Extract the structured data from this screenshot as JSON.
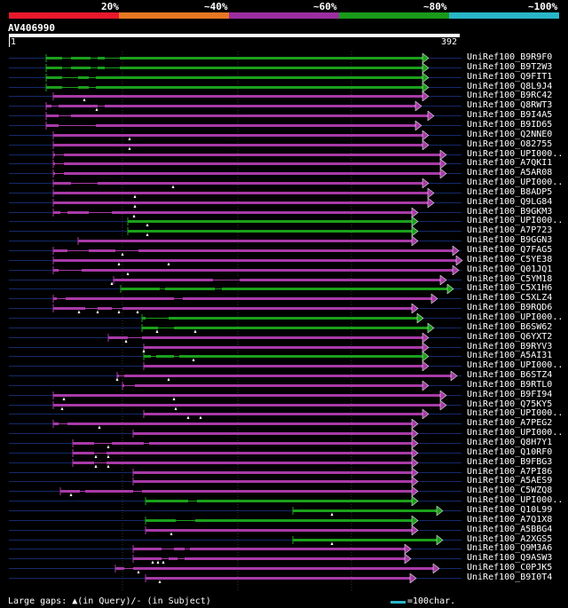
{
  "scale": {
    "segments": [
      {
        "label": "20%",
        "color": "#e8192c"
      },
      {
        "label": "~40%",
        "color": "#e87722"
      },
      {
        "label": "~60%",
        "color": "#9b2fa0"
      },
      {
        "label": "~80%",
        "color": "#1a9a1a"
      },
      {
        "label": "~100%",
        "color": "#29b6c8"
      }
    ]
  },
  "query": {
    "title": "AV406990",
    "start": "1",
    "end": "392"
  },
  "colors": {
    "purple": "#a83aa8",
    "green": "#1ba01b",
    "gap": "#142a6a",
    "dot": "#ffffff"
  },
  "hits": [
    {
      "label": "UniRef100_B9R9F0",
      "color": "green",
      "start": 52,
      "end": 476,
      "gaps": [
        [
          70,
          80
        ],
        [
          102,
          110
        ],
        [
          118,
          135
        ]
      ],
      "marks": []
    },
    {
      "label": "UniRef100_B9T2W3",
      "color": "green",
      "start": 52,
      "end": 476,
      "gaps": [
        [
          70,
          80
        ],
        [
          102,
          110
        ],
        [
          118,
          135
        ]
      ],
      "marks": []
    },
    {
      "label": "UniRef100_Q9FIT1",
      "color": "green",
      "start": 52,
      "end": 476,
      "gaps": [
        [
          70,
          88
        ],
        [
          100,
          108
        ]
      ],
      "marks": []
    },
    {
      "label": "UniRef100_Q8L9J4",
      "color": "green",
      "start": 52,
      "end": 476,
      "gaps": [
        [
          70,
          88
        ],
        [
          100,
          108
        ]
      ],
      "marks": []
    },
    {
      "label": "UniRef100_B9RC42",
      "color": "purple",
      "start": 60,
      "end": 476,
      "gaps": [],
      "marks": [
        95
      ]
    },
    {
      "label": "UniRef100_Q8RWT3",
      "color": "purple",
      "start": 52,
      "end": 468,
      "gaps": [
        [
          58,
          66
        ],
        [
          110,
          118
        ]
      ],
      "marks": [
        109
      ]
    },
    {
      "label": "UniRef100_B9I4A5",
      "color": "purple",
      "start": 52,
      "end": 482,
      "gaps": [
        [
          66,
          80
        ]
      ],
      "marks": []
    },
    {
      "label": "UniRef100_B9ID65",
      "color": "purple",
      "start": 52,
      "end": 468,
      "gaps": [
        [
          66,
          108
        ]
      ],
      "marks": []
    },
    {
      "label": "UniRef100_Q2NNE0",
      "color": "purple",
      "start": 60,
      "end": 476,
      "gaps": [],
      "marks": [
        146
      ]
    },
    {
      "label": "UniRef100_O82755",
      "color": "purple",
      "start": 60,
      "end": 476,
      "gaps": [],
      "marks": [
        146
      ]
    },
    {
      "label": "UniRef100_UPI000..",
      "color": "purple",
      "start": 60,
      "end": 496,
      "gaps": [
        [
          62,
          72
        ]
      ],
      "marks": []
    },
    {
      "label": "UniRef100_A7QKI1",
      "color": "purple",
      "start": 60,
      "end": 496,
      "gaps": [
        [
          62,
          72
        ]
      ],
      "marks": []
    },
    {
      "label": "UniRef100_A5AR08",
      "color": "purple",
      "start": 60,
      "end": 496,
      "gaps": [
        [
          62,
          72
        ]
      ],
      "marks": []
    },
    {
      "label": "UniRef100_UPI000..",
      "color": "purple",
      "start": 60,
      "end": 476,
      "gaps": [
        [
          80,
          110
        ]
      ],
      "marks": [
        195
      ]
    },
    {
      "label": "UniRef100_B8ADP5",
      "color": "purple",
      "start": 60,
      "end": 482,
      "gaps": [],
      "marks": [
        152
      ]
    },
    {
      "label": "UniRef100_Q9LG84",
      "color": "purple",
      "start": 60,
      "end": 482,
      "gaps": [],
      "marks": [
        152
      ]
    },
    {
      "label": "UniRef100_B9GKM3",
      "color": "purple",
      "start": 60,
      "end": 464,
      "gaps": [
        [
          68,
          76
        ],
        [
          100,
          126
        ]
      ],
      "marks": [
        151
      ]
    },
    {
      "label": "UniRef100_UPI000..",
      "color": "green",
      "start": 144,
      "end": 464,
      "gaps": [],
      "marks": [
        166
      ]
    },
    {
      "label": "UniRef100_A7P723",
      "color": "green",
      "start": 144,
      "end": 464,
      "gaps": [],
      "marks": [
        166
      ]
    },
    {
      "label": "UniRef100_B9GGN3",
      "color": "purple",
      "start": 88,
      "end": 464,
      "gaps": [],
      "marks": []
    },
    {
      "label": "UniRef100_Q7FAG5",
      "color": "purple",
      "start": 60,
      "end": 510,
      "gaps": [
        [
          76,
          100
        ],
        [
          130,
          156
        ]
      ],
      "marks": [
        138
      ]
    },
    {
      "label": "UniRef100_C5YE38",
      "color": "purple",
      "start": 60,
      "end": 514,
      "gaps": [],
      "marks": [
        134,
        190
      ]
    },
    {
      "label": "UniRef100_Q01JQ1",
      "color": "purple",
      "start": 60,
      "end": 510,
      "gaps": [
        [
          66,
          92
        ]
      ],
      "marks": [
        144
      ]
    },
    {
      "label": "UniRef100_C5YM18",
      "color": "purple",
      "start": 128,
      "end": 496,
      "gaps": [
        [
          240,
          270
        ]
      ],
      "marks": [
        126
      ]
    },
    {
      "label": "UniRef100_C5X1H6",
      "color": "green",
      "start": 136,
      "end": 504,
      "gaps": [
        [
          180,
          186
        ],
        [
          242,
          250
        ]
      ],
      "marks": []
    },
    {
      "label": "UniRef100_C5XLZ4",
      "color": "purple",
      "start": 60,
      "end": 486,
      "gaps": [
        [
          64,
          74
        ],
        [
          196,
          206
        ]
      ],
      "marks": []
    },
    {
      "label": "UniRef100_B9RQD6",
      "color": "purple",
      "start": 60,
      "end": 464,
      "gaps": [
        [
          96,
          110
        ],
        [
          126,
          138
        ]
      ],
      "marks": [
        89,
        110,
        134,
        155
      ]
    },
    {
      "label": "UniRef100_UPI000..",
      "color": "green",
      "start": 160,
      "end": 470,
      "gaps": [
        [
          164,
          190
        ]
      ],
      "marks": []
    },
    {
      "label": "UniRef100_B6SW62",
      "color": "green",
      "start": 160,
      "end": 482,
      "gaps": [
        [
          178,
          196
        ]
      ],
      "marks": [
        177,
        220
      ]
    },
    {
      "label": "UniRef100_Q6YXT2",
      "color": "purple",
      "start": 122,
      "end": 476,
      "gaps": [
        [
          144,
          160
        ]
      ],
      "marks": [
        142
      ]
    },
    {
      "label": "UniRef100_B9RYV3",
      "color": "purple",
      "start": 162,
      "end": 476,
      "gaps": [],
      "marks": [
        162
      ]
    },
    {
      "label": "UniRef100_A5AI31",
      "color": "green",
      "start": 162,
      "end": 476,
      "gaps": [
        [
          170,
          176
        ],
        [
          196,
          202
        ]
      ],
      "marks": [
        218
      ]
    },
    {
      "label": "UniRef100_UPI000..",
      "color": "purple",
      "start": 162,
      "end": 476,
      "gaps": [],
      "marks": []
    },
    {
      "label": "UniRef100_B6STZ4",
      "color": "purple",
      "start": 132,
      "end": 508,
      "gaps": [
        [
          134,
          140
        ]
      ],
      "marks": [
        132,
        190
      ]
    },
    {
      "label": "UniRef100_B9RTL0",
      "color": "purple",
      "start": 138,
      "end": 476,
      "gaps": [
        [
          140,
          152
        ]
      ],
      "marks": []
    },
    {
      "label": "UniRef100_B9FI94",
      "color": "purple",
      "start": 60,
      "end": 496,
      "gaps": [],
      "marks": [
        72,
        196
      ]
    },
    {
      "label": "UniRef100_Q75KY5",
      "color": "purple",
      "start": 60,
      "end": 496,
      "gaps": [],
      "marks": [
        70,
        198
      ]
    },
    {
      "label": "UniRef100_UPI000..",
      "color": "purple",
      "start": 162,
      "end": 476,
      "gaps": [],
      "marks": [
        212,
        226
      ]
    },
    {
      "label": "UniRef100_A7PEG2",
      "color": "purple",
      "start": 60,
      "end": 464,
      "gaps": [
        [
          66,
          76
        ]
      ],
      "marks": [
        112
      ]
    },
    {
      "label": "UniRef100_UPI000..",
      "color": "purple",
      "start": 150,
      "end": 464,
      "gaps": [],
      "marks": []
    },
    {
      "label": "UniRef100_Q8H7Y1",
      "color": "purple",
      "start": 82,
      "end": 464,
      "gaps": [
        [
          106,
          126
        ],
        [
          162,
          168
        ]
      ],
      "marks": [
        122
      ]
    },
    {
      "label": "UniRef100_Q10RF0",
      "color": "purple",
      "start": 82,
      "end": 464,
      "gaps": [
        [
          106,
          120
        ]
      ],
      "marks": [
        108,
        122
      ]
    },
    {
      "label": "UniRef100_B9FBG3",
      "color": "purple",
      "start": 82,
      "end": 464,
      "gaps": [
        [
          106,
          120
        ]
      ],
      "marks": [
        108,
        122
      ]
    },
    {
      "label": "UniRef100_A7PI86",
      "color": "purple",
      "start": 150,
      "end": 464,
      "gaps": [],
      "marks": []
    },
    {
      "label": "UniRef100_A5AES9",
      "color": "purple",
      "start": 150,
      "end": 464,
      "gaps": [],
      "marks": []
    },
    {
      "label": "UniRef100_C5WZQ8",
      "color": "purple",
      "start": 68,
      "end": 464,
      "gaps": [
        [
          90,
          96
        ],
        [
          150,
          160
        ]
      ],
      "marks": [
        80
      ]
    },
    {
      "label": "UniRef100_UPI000..",
      "color": "green",
      "start": 164,
      "end": 464,
      "gaps": [
        [
          212,
          222
        ]
      ],
      "marks": []
    },
    {
      "label": "UniRef100_Q10L99",
      "color": "green",
      "start": 330,
      "end": 492,
      "gaps": [],
      "marks": [
        374
      ]
    },
    {
      "label": "UniRef100_A7Q1X8",
      "color": "green",
      "start": 164,
      "end": 464,
      "gaps": [
        [
          198,
          220
        ]
      ],
      "marks": []
    },
    {
      "label": "UniRef100_A5BBG4",
      "color": "purple",
      "start": 164,
      "end": 464,
      "gaps": [],
      "marks": [
        193
      ]
    },
    {
      "label": "UniRef100_A2XGS5",
      "color": "green",
      "start": 330,
      "end": 492,
      "gaps": [],
      "marks": [
        374
      ]
    },
    {
      "label": "UniRef100_Q9M3A6",
      "color": "purple",
      "start": 150,
      "end": 456,
      "gaps": [
        [
          182,
          196
        ],
        [
          208,
          214
        ]
      ],
      "marks": []
    },
    {
      "label": "UniRef100_Q9ASW3",
      "color": "purple",
      "start": 150,
      "end": 456,
      "gaps": [
        [
          182,
          190
        ],
        [
          200,
          208
        ]
      ],
      "marks": [
        172,
        178,
        184
      ]
    },
    {
      "label": "UniRef100_C0PJK5",
      "color": "purple",
      "start": 130,
      "end": 488,
      "gaps": [
        [
          140,
          150
        ]
      ],
      "marks": [
        156
      ]
    },
    {
      "label": "UniRef100_B9I0T4",
      "color": "purple",
      "start": 164,
      "end": 462,
      "gaps": [],
      "marks": [
        180
      ]
    }
  ],
  "legend": {
    "text": "Large gaps: ▲(in Query)/- (in Subject)",
    "key_text": "=100char."
  }
}
